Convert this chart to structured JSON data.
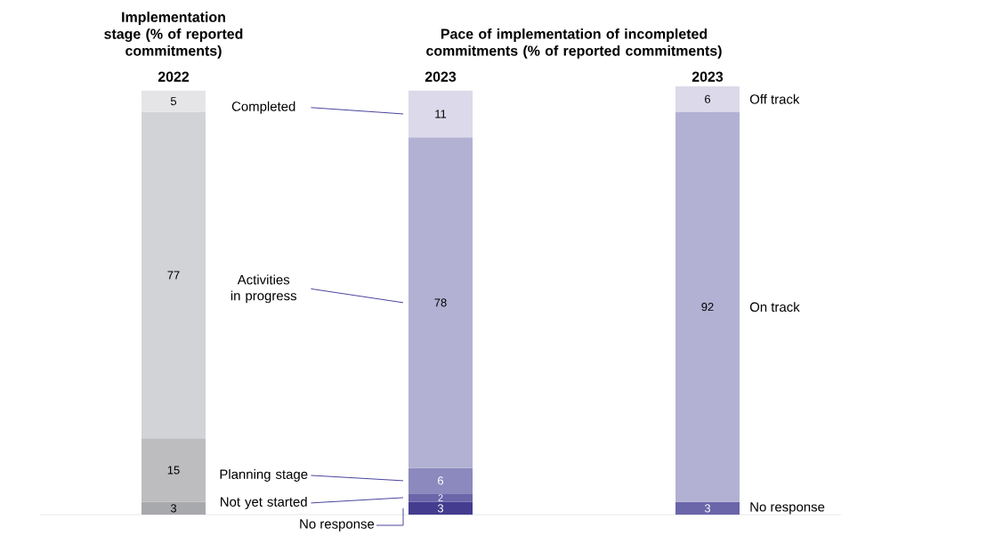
{
  "chart_data": {
    "type": "bar",
    "stacked": true,
    "data_labels": true,
    "annotations": [
      "Implementation stage (% of reported commitments)",
      "Pace of implementation of incompleted commitments (% of reported commitments)"
    ],
    "categories": [
      "2022",
      "2023",
      "2023"
    ],
    "series": [
      {
        "name": "No response",
        "values": [
          null,
          3,
          null
        ],
        "colors": [
          null,
          "#443c8f",
          null
        ]
      },
      {
        "name": "Not yet started",
        "values": [
          3,
          2,
          null
        ],
        "colors": [
          "#a8a9ac",
          "#6b65aa",
          null
        ]
      },
      {
        "name": "Planning stage",
        "values": [
          15,
          6,
          null
        ],
        "colors": [
          "#bdbdc0",
          "#8c89be",
          null
        ]
      },
      {
        "name": "Activities in progress",
        "values": [
          77,
          78,
          null
        ],
        "colors": [
          "#d2d3d6",
          "#b2b1d3",
          null
        ]
      },
      {
        "name": "Completed",
        "values": [
          5,
          11,
          null
        ],
        "colors": [
          "#e5e5e8",
          "#dcd9ea",
          null
        ]
      },
      {
        "name": "No response",
        "values": [
          null,
          null,
          3
        ],
        "colors": [
          null,
          null,
          "#6b65aa"
        ]
      },
      {
        "name": "On track",
        "values": [
          null,
          null,
          92
        ],
        "colors": [
          null,
          null,
          "#b2b1d3"
        ]
      },
      {
        "name": "Off track",
        "values": [
          null,
          null,
          6
        ],
        "colors": [
          null,
          null,
          "#dcd9ea"
        ]
      }
    ]
  }
}
